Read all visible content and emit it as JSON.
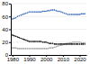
{
  "chart_data": {
    "type": "line",
    "x": [
      1980,
      1981,
      1982,
      1983,
      1984,
      1985,
      1986,
      1987,
      1988,
      1989,
      1990,
      1991,
      1992,
      1993,
      1994,
      1995,
      1996,
      1997,
      1998,
      1999,
      2000,
      2001,
      2002,
      2003,
      2004,
      2005,
      2006,
      2007,
      2008,
      2009,
      2010,
      2011,
      2012,
      2013,
      2014,
      2015,
      2016,
      2017,
      2018,
      2019,
      2020,
      2021,
      2022,
      2023
    ],
    "series": [
      {
        "color": "#4472c4",
        "line_style": "dotted",
        "marker": "circle",
        "values": [
          56,
          57,
          58,
          60,
          61,
          62,
          63,
          64,
          65,
          66,
          67,
          67,
          67,
          67,
          67,
          67,
          67,
          67,
          68,
          68,
          68,
          69,
          69,
          70,
          70,
          70,
          69,
          68,
          68,
          67,
          66,
          65,
          64,
          63,
          63,
          63,
          63,
          63,
          63,
          63,
          63,
          64,
          64,
          64
        ]
      },
      {
        "color": "#a6a6a6",
        "line_style": "dotted",
        "marker": "circle",
        "values": [
          11,
          11,
          11,
          10,
          10,
          10,
          10,
          10,
          10,
          10,
          10,
          10,
          10,
          10,
          10,
          10,
          10,
          10,
          10,
          10,
          10,
          10,
          11,
          11,
          11,
          12,
          13,
          14,
          15,
          15,
          16,
          17,
          18,
          18,
          19,
          19,
          20,
          20,
          20,
          20,
          20,
          19,
          19,
          19
        ]
      },
      {
        "color": "#1f1f1f",
        "line_style": "dashdot",
        "marker": "circle",
        "values": [
          31,
          30,
          29,
          28,
          27,
          26,
          25,
          24,
          23,
          22,
          21,
          21,
          21,
          21,
          21,
          21,
          21,
          21,
          20,
          20,
          20,
          19,
          18,
          18,
          18,
          17,
          17,
          17,
          17,
          17,
          17,
          17,
          17,
          17,
          17,
          17,
          17,
          17,
          17,
          17,
          17,
          17,
          17,
          17
        ]
      }
    ],
    "xlim": [
      1979,
      2024
    ],
    "xticks": [
      1980,
      1990,
      2000,
      2010,
      2020
    ],
    "ylim": [
      0,
      80
    ],
    "yticks": [
      0,
      20,
      40,
      60,
      80
    ],
    "grid": true
  }
}
